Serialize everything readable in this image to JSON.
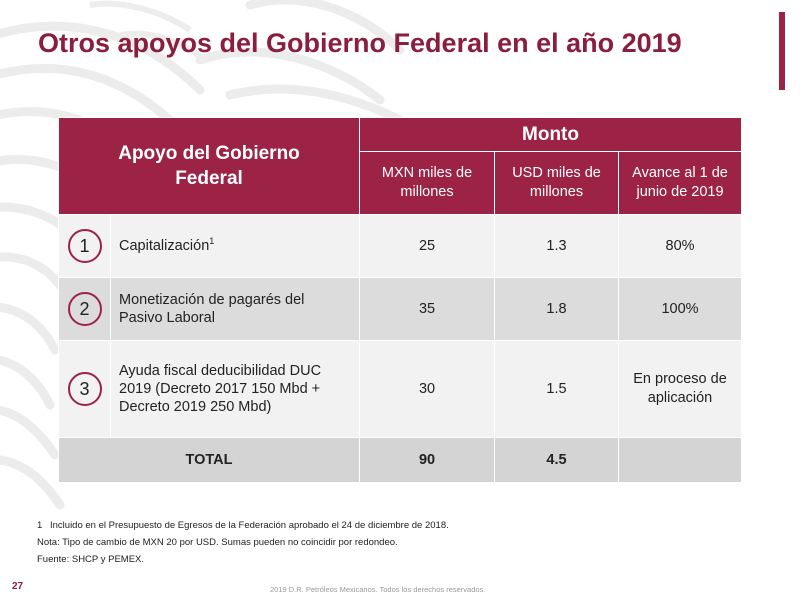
{
  "slide": {
    "title": "Otros apoyos del Gobierno Federal en el año 2019",
    "page_number": "27",
    "copyright": "2019 D.R. Petróleos Mexicanos. Todos los derechos reservados."
  },
  "table": {
    "header": {
      "apoyo": "Apoyo del Gobierno Federal",
      "monto": "Monto",
      "mxn": "MXN miles de millones",
      "usd": "USD miles de millones",
      "avance": "Avance al 1 de junio de 2019"
    },
    "rows": [
      {
        "num": "1",
        "desc": "Capitalización",
        "sup": "1",
        "mxn": "25",
        "usd": "1.3",
        "avance": "80%"
      },
      {
        "num": "2",
        "desc": "Monetización de pagarés del Pasivo Laboral",
        "sup": "",
        "mxn": "35",
        "usd": "1.8",
        "avance": "100%"
      },
      {
        "num": "3",
        "desc": "Ayuda fiscal deducibilidad DUC 2019 (Decreto 2017 150 Mbd + Decreto 2019 250 Mbd)",
        "sup": "",
        "mxn": "30",
        "usd": "1.5",
        "avance": "En proceso de aplicación"
      }
    ],
    "total": {
      "label": "TOTAL",
      "mxn": "90",
      "usd": "4.5",
      "avance": ""
    }
  },
  "notes": {
    "footnote_number": "1",
    "footnote": "Incluido en el Presupuesto de Egresos de la Federación aprobado el 24 de diciembre de 2018.",
    "nota": "Nota: Tipo de cambio de MXN 20 por USD. Sumas pueden no coincidir por redondeo.",
    "fuente": "Fuente: SHCP y PEMEX."
  },
  "colors": {
    "brand": "#9c2346",
    "title": "#8b1e3f",
    "row_light": "#f2f2f2",
    "row_dark": "#dcdcdc"
  },
  "icons": {
    "watermark": "eagle-seal-watermark"
  }
}
